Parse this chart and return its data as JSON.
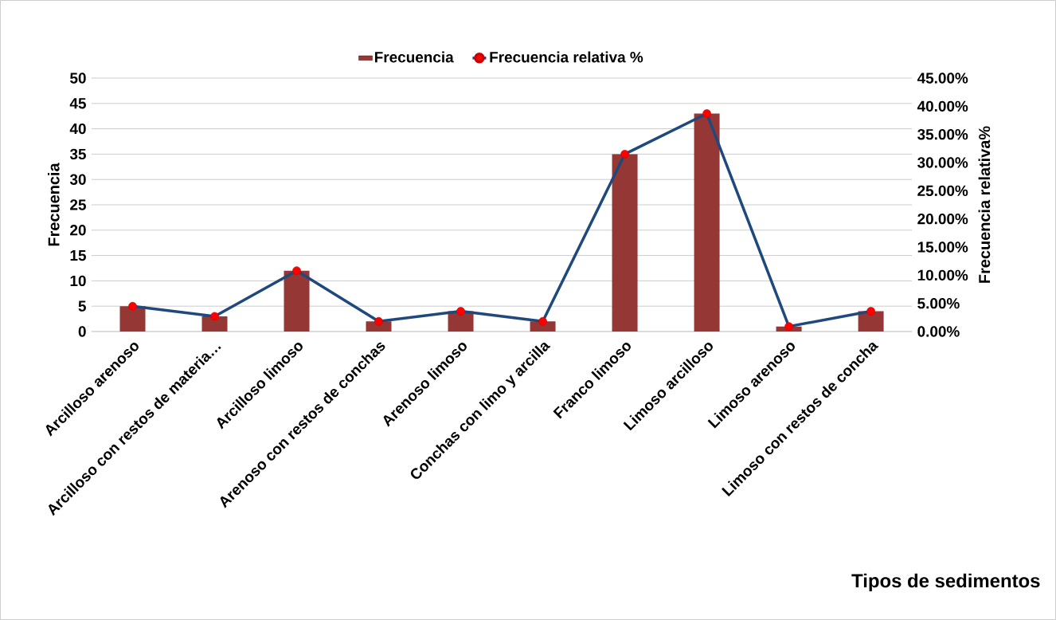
{
  "chart_data": {
    "type": "bar",
    "categories": [
      "Arcilloso arenoso",
      "Arcilloso con restos de materia…",
      "Arcilloso limoso",
      "Arenoso con restos de conchas",
      "Arenoso limoso",
      "Conchas con limo y arcilla",
      "Franco limoso",
      "Limoso arcilloso",
      "Limoso arenoso",
      "Limoso con restos de concha"
    ],
    "xlabel": "Tipos de sedimentos",
    "ylabel": "Frecuencia",
    "y2label": "Frecuencia relativa%",
    "series": [
      {
        "name": "Frecuencia",
        "color": "#953735",
        "values": [
          5,
          3,
          12,
          2,
          4,
          2,
          35,
          43,
          1,
          4
        ]
      },
      {
        "name": "Frecuencia relativa %",
        "type": "line",
        "axis": "y2",
        "color": "#1f497d",
        "values": [
          4.5,
          2.7,
          10.8,
          1.8,
          3.6,
          1.8,
          31.5,
          38.7,
          0.9,
          3.6
        ]
      }
    ],
    "ylim": [
      0,
      50
    ],
    "yticks": [
      0,
      5,
      10,
      15,
      20,
      25,
      30,
      35,
      40,
      45,
      50
    ],
    "y2lim": [
      0,
      45
    ],
    "y2ticks": [
      {
        "value": 0,
        "label": "0.00%"
      },
      {
        "value": 5,
        "label": "5.00%"
      },
      {
        "value": 10,
        "label": "10.00%"
      },
      {
        "value": 15,
        "label": "15.00%"
      },
      {
        "value": 20,
        "label": "20.00%"
      },
      {
        "value": 25,
        "label": "25.00%"
      },
      {
        "value": 30,
        "label": "30.00%"
      },
      {
        "value": 35,
        "label": "35.00%"
      },
      {
        "value": 40,
        "label": "40.00%"
      },
      {
        "value": 45,
        "label": "45.00%"
      }
    ],
    "grid": "y",
    "legend": "top",
    "marker": "circle",
    "line_style": "solid"
  }
}
